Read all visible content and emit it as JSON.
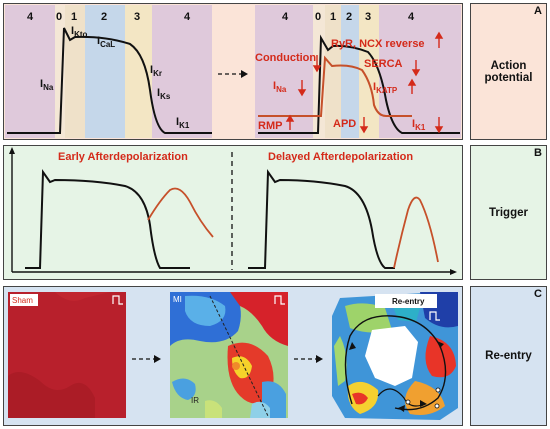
{
  "colors": {
    "panel_a_bg": "#fbe4d8",
    "panel_b_bg": "#e6f4e6",
    "panel_c_bg": "#d6e3f1",
    "phase_purple": "#d9c4dc",
    "phase_blue": "#bfd5ec",
    "phase_yellow": "#f3e6c4",
    "red": "#d42a1a",
    "curve_orange": "#c6502a"
  },
  "panel_a": {
    "letter": "A",
    "label_line1": "Action",
    "label_line2": "potential",
    "left_phases": [
      "4",
      "0",
      "1",
      "2",
      "3",
      "4"
    ],
    "right_phases": [
      "4",
      "0",
      "1",
      "2",
      "3",
      "4"
    ],
    "currents_left": {
      "ikto": "I",
      "ikto_sub": "Kto",
      "ical": "I",
      "ical_sub": "CaL",
      "ina": "I",
      "ina_sub": "Na",
      "ikr": "I",
      "ikr_sub": "Kr",
      "iks": "I",
      "iks_sub": "Ks",
      "ik1": "I",
      "ik1_sub": "K1"
    },
    "right_labels": {
      "ryr": "RyR, NCX reverse",
      "conduction": "Conduction",
      "serca": "SERCA",
      "ina": "I",
      "ina_sub": "Na",
      "ikatp": "I",
      "ikatp_sub": "KATP",
      "rmp": "RMP",
      "apd": "APD",
      "ik1": "I",
      "ik1_sub": "K1"
    }
  },
  "panel_b": {
    "letter": "B",
    "label": "Trigger",
    "ead_title": "Early Afterdepolarization",
    "dad_title": "Delayed  Afterdepolarization"
  },
  "panel_c": {
    "letter": "C",
    "label": "Re-entry",
    "sham": "Sham",
    "mi": "MI",
    "ir": "IR",
    "reentry": "Re-entry"
  }
}
